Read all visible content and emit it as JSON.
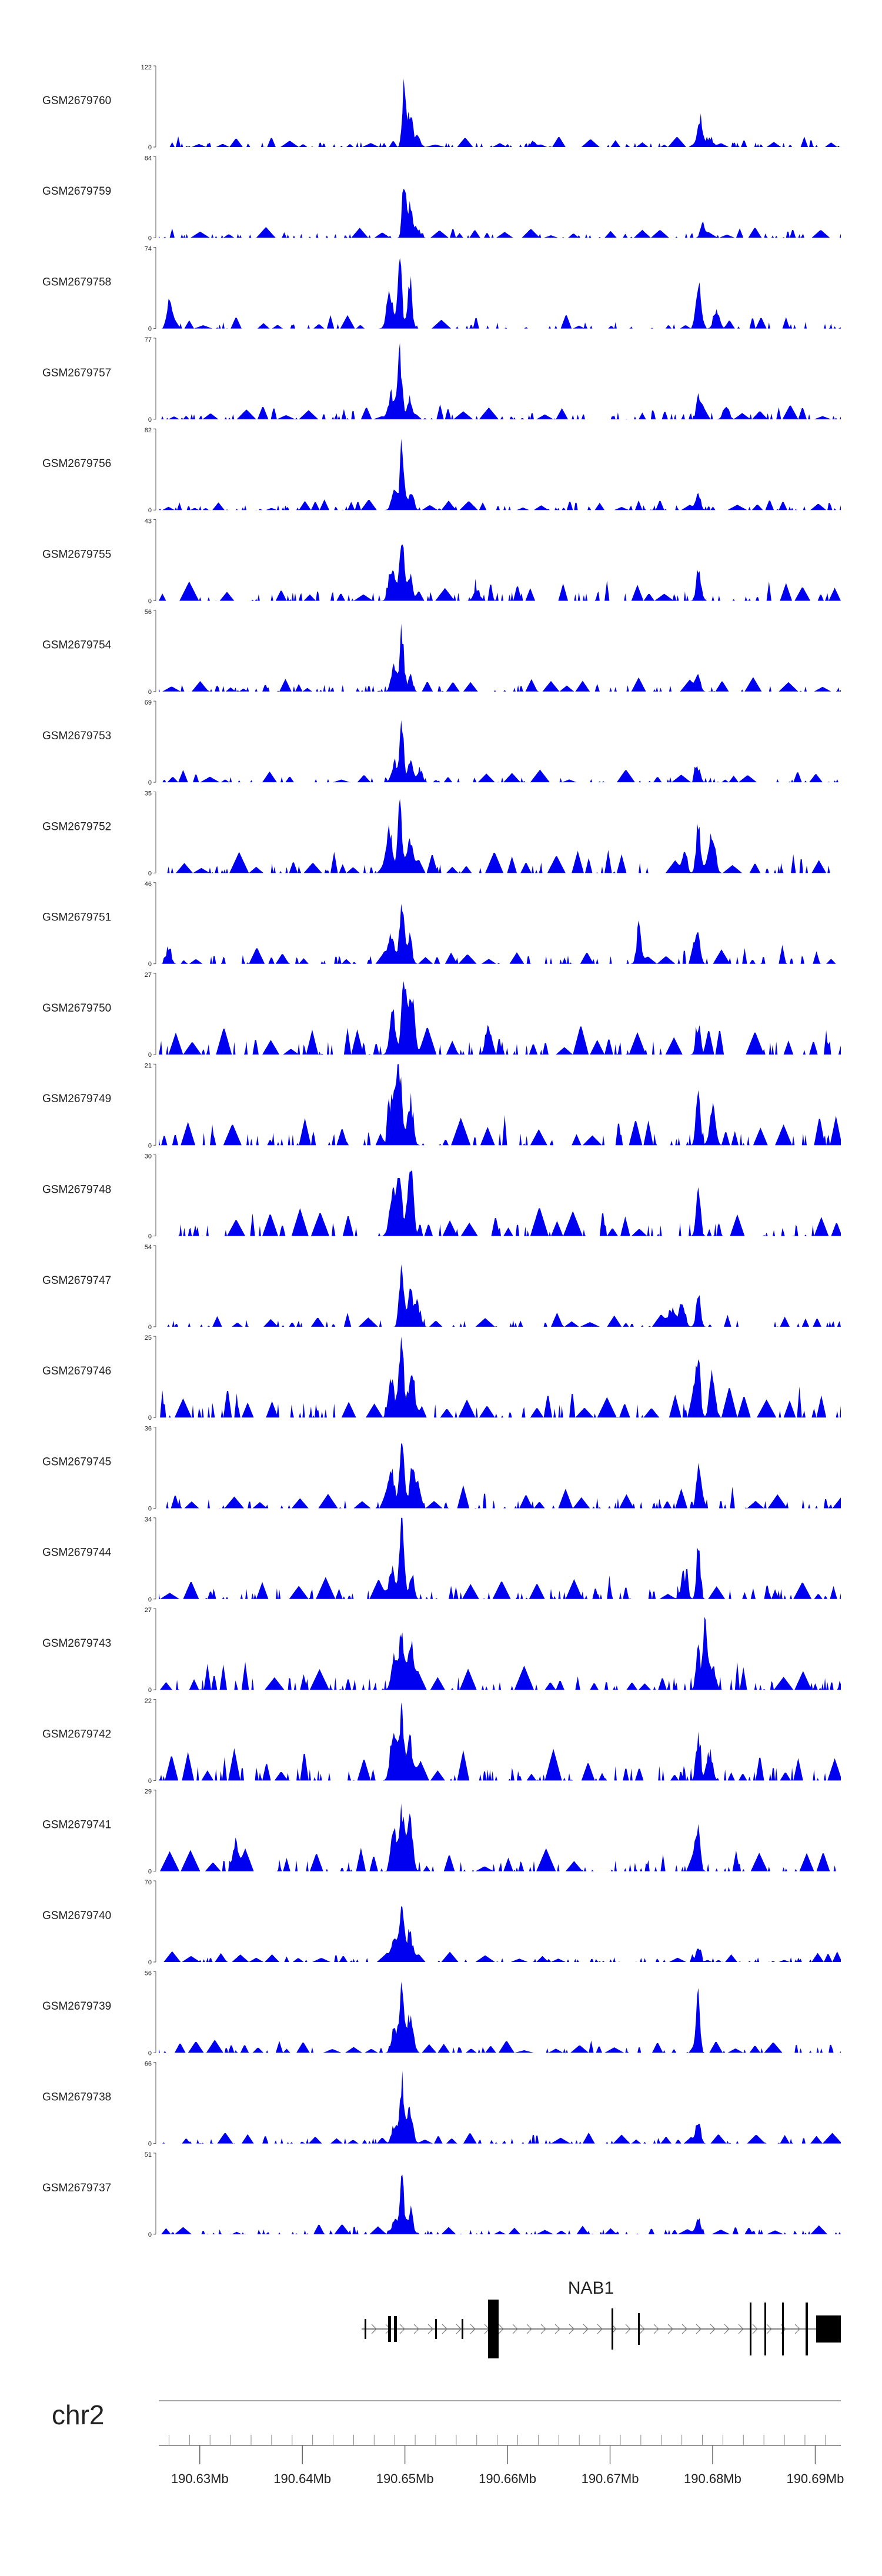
{
  "chart_data": {
    "type": "area",
    "title": "",
    "chromosome": "chr2",
    "gene": {
      "name": "NAB1"
    },
    "xlim": [
      190.626,
      190.6925
    ],
    "x_axis": {
      "unit": "Mb",
      "ticks": [
        190.63,
        190.64,
        190.65,
        190.66,
        190.67,
        190.68,
        190.69
      ],
      "tick_labels": [
        "190.63Mb",
        "190.64Mb",
        "190.65Mb",
        "190.66Mb",
        "190.67Mb",
        "190.68Mb",
        "190.69Mb"
      ]
    },
    "ymin_label": "0",
    "fill_color": "#0000f0",
    "series": [
      {
        "name": "GSM2679760",
        "ymax": 122,
        "seed": 11,
        "bg": 0.1,
        "noise": 0.9,
        "spread": 1.2,
        "peaks": [
          [
            190.6499,
            1.0,
            0.00025
          ],
          [
            190.6505,
            0.55,
            0.0003
          ],
          [
            190.6512,
            0.18,
            0.0004
          ],
          [
            190.6788,
            0.42,
            0.0003
          ],
          [
            190.6797,
            0.15,
            0.0004
          ],
          [
            190.6625,
            0.1,
            0.0003
          ]
        ]
      },
      {
        "name": "GSM2679759",
        "ymax": 84,
        "seed": 12,
        "bg": 0.1,
        "noise": 0.9,
        "spread": 1.1,
        "peaks": [
          [
            190.6499,
            1.0,
            0.00025
          ],
          [
            190.6505,
            0.45,
            0.0003
          ],
          [
            190.6512,
            0.15,
            0.0004
          ],
          [
            190.679,
            0.2,
            0.0003
          ]
        ]
      },
      {
        "name": "GSM2679758",
        "ymax": 74,
        "seed": 13,
        "bg": 0.14,
        "noise": 0.85,
        "spread": 1.0,
        "peaks": [
          [
            190.6495,
            1.0,
            0.0003
          ],
          [
            190.6485,
            0.62,
            0.0004
          ],
          [
            190.6505,
            0.7,
            0.0003
          ],
          [
            190.6786,
            0.52,
            0.0003
          ],
          [
            190.6804,
            0.28,
            0.0004
          ],
          [
            190.627,
            0.3,
            0.0003
          ]
        ]
      },
      {
        "name": "GSM2679757",
        "ymax": 77,
        "seed": 14,
        "bg": 0.14,
        "noise": 0.85,
        "spread": 1.0,
        "peaks": [
          [
            190.6495,
            1.0,
            0.0003
          ],
          [
            190.6487,
            0.4,
            0.0004
          ],
          [
            190.6505,
            0.35,
            0.0003
          ],
          [
            190.6786,
            0.3,
            0.0003
          ],
          [
            190.6813,
            0.22,
            0.0004
          ]
        ]
      },
      {
        "name": "GSM2679756",
        "ymax": 82,
        "seed": 15,
        "bg": 0.1,
        "noise": 0.85,
        "spread": 1.0,
        "peaks": [
          [
            190.6497,
            1.0,
            0.00025
          ],
          [
            190.649,
            0.3,
            0.0004
          ],
          [
            190.6507,
            0.22,
            0.0003
          ],
          [
            190.6786,
            0.28,
            0.0003
          ]
        ]
      },
      {
        "name": "GSM2679755",
        "ymax": 43,
        "seed": 16,
        "bg": 0.2,
        "noise": 0.8,
        "spread": 1.0,
        "peaks": [
          [
            190.6497,
            1.0,
            0.0003
          ],
          [
            190.6487,
            0.55,
            0.0004
          ],
          [
            190.6505,
            0.45,
            0.0003
          ],
          [
            190.6786,
            0.5,
            0.0003
          ],
          [
            190.657,
            0.22,
            0.0004
          ]
        ]
      },
      {
        "name": "GSM2679754",
        "ymax": 56,
        "seed": 17,
        "bg": 0.14,
        "noise": 0.85,
        "spread": 0.9,
        "peaks": [
          [
            190.6497,
            1.0,
            0.00025
          ],
          [
            190.649,
            0.45,
            0.0004
          ],
          [
            190.6505,
            0.3,
            0.0003
          ],
          [
            190.6786,
            0.3,
            0.0003
          ]
        ]
      },
      {
        "name": "GSM2679753",
        "ymax": 69,
        "seed": 18,
        "bg": 0.12,
        "noise": 0.85,
        "spread": 0.9,
        "peaks": [
          [
            190.6497,
            1.0,
            0.00025
          ],
          [
            190.649,
            0.35,
            0.0004
          ],
          [
            190.6505,
            0.25,
            0.0003
          ],
          [
            190.6786,
            0.25,
            0.0003
          ],
          [
            190.6515,
            0.2,
            0.0003
          ]
        ]
      },
      {
        "name": "GSM2679752",
        "ymax": 35,
        "seed": 19,
        "bg": 0.22,
        "noise": 0.8,
        "spread": 1.0,
        "peaks": [
          [
            190.6495,
            1.0,
            0.0003
          ],
          [
            190.6485,
            0.65,
            0.0004
          ],
          [
            190.6505,
            0.6,
            0.0004
          ],
          [
            190.6786,
            0.8,
            0.0003
          ],
          [
            190.68,
            0.45,
            0.0004
          ],
          [
            190.6773,
            0.35,
            0.0003
          ]
        ]
      },
      {
        "name": "GSM2679751",
        "ymax": 46,
        "seed": 20,
        "bg": 0.18,
        "noise": 0.8,
        "spread": 1.0,
        "peaks": [
          [
            190.6497,
            1.0,
            0.0003
          ],
          [
            190.6487,
            0.45,
            0.0004
          ],
          [
            190.6505,
            0.4,
            0.0003
          ],
          [
            190.6728,
            0.6,
            0.0003
          ],
          [
            190.6786,
            0.48,
            0.0003
          ],
          [
            190.627,
            0.3,
            0.0003
          ]
        ]
      },
      {
        "name": "GSM2679750",
        "ymax": 27,
        "seed": 21,
        "bg": 0.28,
        "noise": 0.75,
        "spread": 1.1,
        "peaks": [
          [
            190.6499,
            1.0,
            0.0003
          ],
          [
            190.6488,
            0.7,
            0.0004
          ],
          [
            190.6507,
            0.8,
            0.0004
          ],
          [
            190.6786,
            0.52,
            0.0003
          ],
          [
            190.658,
            0.4,
            0.0003
          ]
        ]
      },
      {
        "name": "GSM2679749",
        "ymax": 21,
        "seed": 22,
        "bg": 0.3,
        "noise": 0.75,
        "spread": 1.1,
        "peaks": [
          [
            190.6495,
            1.0,
            0.00035
          ],
          [
            190.6487,
            0.75,
            0.0004
          ],
          [
            190.6505,
            0.65,
            0.0004
          ],
          [
            190.6786,
            0.95,
            0.0003
          ],
          [
            190.68,
            0.6,
            0.0004
          ]
        ]
      },
      {
        "name": "GSM2679748",
        "ymax": 30,
        "seed": 23,
        "bg": 0.28,
        "noise": 0.75,
        "spread": 1.0,
        "peaks": [
          [
            190.6495,
            1.0,
            0.0003
          ],
          [
            190.6505,
            0.98,
            0.0004
          ],
          [
            190.6487,
            0.6,
            0.0004
          ],
          [
            190.6786,
            0.7,
            0.0003
          ]
        ]
      },
      {
        "name": "GSM2679747",
        "ymax": 54,
        "seed": 24,
        "bg": 0.14,
        "noise": 0.8,
        "spread": 0.9,
        "peaks": [
          [
            190.6497,
            1.0,
            0.0003
          ],
          [
            190.6505,
            0.55,
            0.0004
          ],
          [
            190.6512,
            0.4,
            0.0004
          ],
          [
            190.6786,
            0.55,
            0.0003
          ],
          [
            190.677,
            0.38,
            0.0004
          ],
          [
            190.676,
            0.3,
            0.0004
          ]
        ]
      },
      {
        "name": "GSM2679746",
        "ymax": 25,
        "seed": 25,
        "bg": 0.3,
        "noise": 0.75,
        "spread": 1.1,
        "peaks": [
          [
            190.6497,
            1.0,
            0.00035
          ],
          [
            190.6487,
            0.65,
            0.0004
          ],
          [
            190.6507,
            0.7,
            0.0004
          ],
          [
            190.6786,
            0.95,
            0.0003
          ],
          [
            190.68,
            0.55,
            0.0004
          ]
        ]
      },
      {
        "name": "GSM2679745",
        "ymax": 36,
        "seed": 26,
        "bg": 0.22,
        "noise": 0.8,
        "spread": 1.0,
        "peaks": [
          [
            190.6497,
            1.0,
            0.0003
          ],
          [
            190.6487,
            0.6,
            0.0004
          ],
          [
            190.6507,
            0.55,
            0.0004
          ],
          [
            190.6786,
            0.45,
            0.0003
          ]
        ]
      },
      {
        "name": "GSM2679744",
        "ymax": 34,
        "seed": 27,
        "bg": 0.22,
        "noise": 0.8,
        "spread": 1.0,
        "peaks": [
          [
            190.6497,
            1.0,
            0.0003
          ],
          [
            190.6487,
            0.5,
            0.0004
          ],
          [
            190.6507,
            0.45,
            0.0003
          ],
          [
            190.6786,
            1.0,
            0.00025
          ],
          [
            190.6772,
            0.4,
            0.0004
          ]
        ]
      },
      {
        "name": "GSM2679743",
        "ymax": 27,
        "seed": 28,
        "bg": 0.26,
        "noise": 0.75,
        "spread": 1.0,
        "peaks": [
          [
            190.6497,
            0.9,
            0.0003
          ],
          [
            190.6505,
            0.8,
            0.0004
          ],
          [
            190.649,
            0.55,
            0.0004
          ],
          [
            190.6793,
            1.0,
            0.0003
          ],
          [
            190.6786,
            0.7,
            0.0003
          ],
          [
            190.68,
            0.45,
            0.0004
          ]
        ]
      },
      {
        "name": "GSM2679742",
        "ymax": 22,
        "seed": 29,
        "bg": 0.3,
        "noise": 0.75,
        "spread": 1.2,
        "peaks": [
          [
            190.6497,
            1.0,
            0.0003
          ],
          [
            190.6505,
            0.65,
            0.0004
          ],
          [
            190.6488,
            0.55,
            0.0004
          ],
          [
            190.6786,
            0.7,
            0.0003
          ],
          [
            190.6797,
            0.5,
            0.0004
          ]
        ]
      },
      {
        "name": "GSM2679741",
        "ymax": 29,
        "seed": 30,
        "bg": 0.24,
        "noise": 0.8,
        "spread": 1.0,
        "peaks": [
          [
            190.6497,
            1.0,
            0.0003
          ],
          [
            190.6505,
            0.6,
            0.0004
          ],
          [
            190.649,
            0.5,
            0.0004
          ],
          [
            190.6786,
            0.55,
            0.0003
          ],
          [
            190.6335,
            0.6,
            0.0003
          ]
        ]
      },
      {
        "name": "GSM2679740",
        "ymax": 70,
        "seed": 31,
        "bg": 0.1,
        "noise": 0.85,
        "spread": 1.0,
        "peaks": [
          [
            190.6497,
            1.0,
            0.0003
          ],
          [
            190.6505,
            0.45,
            0.0004
          ],
          [
            190.649,
            0.35,
            0.0004
          ],
          [
            190.6786,
            0.25,
            0.0003
          ]
        ]
      },
      {
        "name": "GSM2679739",
        "ymax": 56,
        "seed": 32,
        "bg": 0.12,
        "noise": 0.85,
        "spread": 1.0,
        "peaks": [
          [
            190.6497,
            1.0,
            0.0003
          ],
          [
            190.6505,
            0.55,
            0.0004
          ],
          [
            190.649,
            0.4,
            0.0004
          ],
          [
            190.6786,
            0.85,
            0.00025
          ]
        ]
      },
      {
        "name": "GSM2679738",
        "ymax": 66,
        "seed": 33,
        "bg": 0.12,
        "noise": 0.85,
        "spread": 0.9,
        "peaks": [
          [
            190.6497,
            1.0,
            0.0003
          ],
          [
            190.6505,
            0.4,
            0.0004
          ],
          [
            190.649,
            0.3,
            0.0004
          ],
          [
            190.6786,
            0.4,
            0.0003
          ]
        ]
      },
      {
        "name": "GSM2679737",
        "ymax": 51,
        "seed": 34,
        "bg": 0.1,
        "noise": 0.85,
        "spread": 1.0,
        "peaks": [
          [
            190.6497,
            1.0,
            0.00025
          ],
          [
            190.6505,
            0.35,
            0.0004
          ],
          [
            190.649,
            0.25,
            0.0004
          ],
          [
            190.6786,
            0.3,
            0.0003
          ]
        ]
      }
    ]
  }
}
